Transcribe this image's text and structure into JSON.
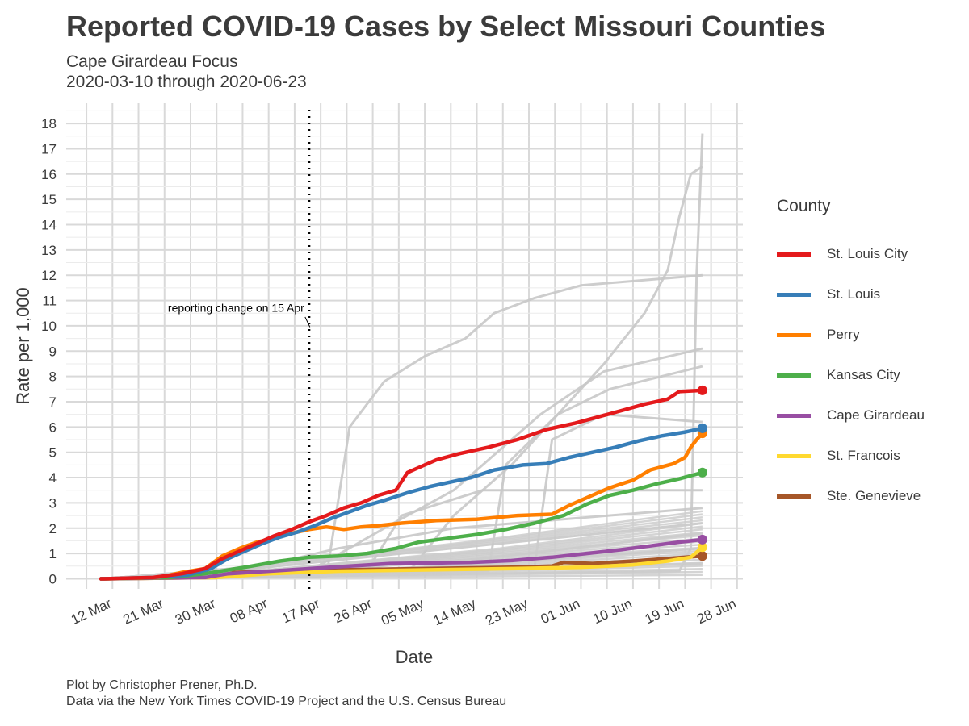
{
  "title": "Reported COVID-19 Cases by Select Missouri Counties",
  "subtitle_line1": "Cape Girardeau Focus",
  "subtitle_line2": "2020-03-10 through 2020-06-23",
  "caption_line1": "Plot by Christopher Prener, Ph.D.",
  "caption_line2": "Data via the New York Times COVID-19 Project and the U.S. Census Bureau",
  "legend": {
    "title": "County",
    "items": [
      {
        "label": "St. Louis City",
        "color": "#e41a1c"
      },
      {
        "label": "St. Louis",
        "color": "#377eb8"
      },
      {
        "label": "Perry",
        "color": "#ff7f00"
      },
      {
        "label": "Kansas City",
        "color": "#4daf4a"
      },
      {
        "label": "Cape Girardeau",
        "color": "#984ea3"
      },
      {
        "label": "St. Francois",
        "color": "#ffd92f"
      },
      {
        "label": "Ste. Genevieve",
        "color": "#a65628"
      }
    ]
  },
  "chart_data": {
    "type": "line",
    "xlabel": "Date",
    "ylabel": "Rate per 1,000",
    "xlim": [
      "2020-03-04",
      "2020-06-29"
    ],
    "ylim": [
      -0.4,
      18.8
    ],
    "x_ticks": [
      {
        "date": "2020-03-12",
        "label": "12 Mar"
      },
      {
        "date": "2020-03-21",
        "label": "21 Mar"
      },
      {
        "date": "2020-03-30",
        "label": "30 Mar"
      },
      {
        "date": "2020-04-08",
        "label": "08 Apr"
      },
      {
        "date": "2020-04-17",
        "label": "17 Apr"
      },
      {
        "date": "2020-04-26",
        "label": "26 Apr"
      },
      {
        "date": "2020-05-05",
        "label": "05 May"
      },
      {
        "date": "2020-05-14",
        "label": "14 May"
      },
      {
        "date": "2020-05-23",
        "label": "23 May"
      },
      {
        "date": "2020-06-01",
        "label": "01 Jun"
      },
      {
        "date": "2020-06-10",
        "label": "10 Jun"
      },
      {
        "date": "2020-06-19",
        "label": "19 Jun"
      },
      {
        "date": "2020-06-28",
        "label": "28 Jun"
      }
    ],
    "y_ticks": [
      0,
      1,
      2,
      3,
      4,
      5,
      6,
      7,
      8,
      9,
      10,
      11,
      12,
      13,
      14,
      15,
      16,
      17,
      18
    ],
    "annotation": {
      "date": "2020-04-15",
      "label": "reporting change on 15 Apr",
      "y": 10
    },
    "series": [
      {
        "name": "St. Louis City",
        "color": "#e41a1c",
        "points": [
          [
            "2020-03-10",
            0
          ],
          [
            "2020-03-19",
            0.05
          ],
          [
            "2020-03-24",
            0.2
          ],
          [
            "2020-03-28",
            0.4
          ],
          [
            "2020-03-31",
            0.8
          ],
          [
            "2020-04-03",
            1.1
          ],
          [
            "2020-04-06",
            1.4
          ],
          [
            "2020-04-09",
            1.7
          ],
          [
            "2020-04-12",
            1.95
          ],
          [
            "2020-04-15",
            2.25
          ],
          [
            "2020-04-18",
            2.5
          ],
          [
            "2020-04-21",
            2.8
          ],
          [
            "2020-04-24",
            3.0
          ],
          [
            "2020-04-27",
            3.3
          ],
          [
            "2020-04-30",
            3.5
          ],
          [
            "2020-05-02",
            4.2
          ],
          [
            "2020-05-04",
            4.4
          ],
          [
            "2020-05-07",
            4.7
          ],
          [
            "2020-05-11",
            4.95
          ],
          [
            "2020-05-16",
            5.2
          ],
          [
            "2020-05-21",
            5.5
          ],
          [
            "2020-05-26",
            5.9
          ],
          [
            "2020-05-31",
            6.15
          ],
          [
            "2020-06-04",
            6.4
          ],
          [
            "2020-06-08",
            6.65
          ],
          [
            "2020-06-12",
            6.9
          ],
          [
            "2020-06-16",
            7.1
          ],
          [
            "2020-06-18",
            7.4
          ],
          [
            "2020-06-22",
            7.45
          ]
        ]
      },
      {
        "name": "St. Louis",
        "color": "#377eb8",
        "points": [
          [
            "2020-03-10",
            0
          ],
          [
            "2020-03-19",
            0.05
          ],
          [
            "2020-03-25",
            0.15
          ],
          [
            "2020-03-29",
            0.4
          ],
          [
            "2020-04-01",
            0.8
          ],
          [
            "2020-04-04",
            1.1
          ],
          [
            "2020-04-07",
            1.4
          ],
          [
            "2020-04-10",
            1.65
          ],
          [
            "2020-04-13",
            1.85
          ],
          [
            "2020-04-16",
            2.1
          ],
          [
            "2020-04-19",
            2.4
          ],
          [
            "2020-04-22",
            2.65
          ],
          [
            "2020-04-25",
            2.9
          ],
          [
            "2020-04-28",
            3.1
          ],
          [
            "2020-05-02",
            3.4
          ],
          [
            "2020-05-06",
            3.65
          ],
          [
            "2020-05-10",
            3.85
          ],
          [
            "2020-05-13",
            4.0
          ],
          [
            "2020-05-17",
            4.3
          ],
          [
            "2020-05-22",
            4.5
          ],
          [
            "2020-05-26",
            4.55
          ],
          [
            "2020-05-30",
            4.8
          ],
          [
            "2020-06-03",
            5.0
          ],
          [
            "2020-06-07",
            5.2
          ],
          [
            "2020-06-11",
            5.45
          ],
          [
            "2020-06-15",
            5.65
          ],
          [
            "2020-06-19",
            5.8
          ],
          [
            "2020-06-22",
            5.95
          ]
        ]
      },
      {
        "name": "Perry",
        "color": "#ff7f00",
        "points": [
          [
            "2020-03-10",
            0
          ],
          [
            "2020-03-20",
            0.05
          ],
          [
            "2020-03-24",
            0.25
          ],
          [
            "2020-03-28",
            0.4
          ],
          [
            "2020-03-31",
            0.9
          ],
          [
            "2020-04-03",
            1.2
          ],
          [
            "2020-04-06",
            1.45
          ],
          [
            "2020-04-09",
            1.6
          ],
          [
            "2020-04-12",
            1.8
          ],
          [
            "2020-04-15",
            1.95
          ],
          [
            "2020-04-18",
            2.05
          ],
          [
            "2020-04-21",
            1.95
          ],
          [
            "2020-04-24",
            2.05
          ],
          [
            "2020-04-27",
            2.1
          ],
          [
            "2020-05-01",
            2.2
          ],
          [
            "2020-05-07",
            2.3
          ],
          [
            "2020-05-14",
            2.35
          ],
          [
            "2020-05-21",
            2.5
          ],
          [
            "2020-05-27",
            2.55
          ],
          [
            "2020-05-30",
            2.9
          ],
          [
            "2020-06-02",
            3.2
          ],
          [
            "2020-06-06",
            3.6
          ],
          [
            "2020-06-10",
            3.9
          ],
          [
            "2020-06-13",
            4.3
          ],
          [
            "2020-06-17",
            4.55
          ],
          [
            "2020-06-19",
            4.8
          ],
          [
            "2020-06-20",
            5.2
          ],
          [
            "2020-06-21",
            5.5
          ],
          [
            "2020-06-22",
            5.75
          ]
        ]
      },
      {
        "name": "Kansas City",
        "color": "#4daf4a",
        "points": [
          [
            "2020-03-10",
            0
          ],
          [
            "2020-03-22",
            0.05
          ],
          [
            "2020-03-28",
            0.2
          ],
          [
            "2020-04-01",
            0.35
          ],
          [
            "2020-04-05",
            0.5
          ],
          [
            "2020-04-10",
            0.7
          ],
          [
            "2020-04-15",
            0.85
          ],
          [
            "2020-04-20",
            0.9
          ],
          [
            "2020-04-25",
            1.0
          ],
          [
            "2020-04-30",
            1.2
          ],
          [
            "2020-05-04",
            1.45
          ],
          [
            "2020-05-09",
            1.6
          ],
          [
            "2020-05-14",
            1.75
          ],
          [
            "2020-05-19",
            1.95
          ],
          [
            "2020-05-24",
            2.2
          ],
          [
            "2020-05-29",
            2.5
          ],
          [
            "2020-06-02",
            2.95
          ],
          [
            "2020-06-06",
            3.3
          ],
          [
            "2020-06-10",
            3.5
          ],
          [
            "2020-06-14",
            3.75
          ],
          [
            "2020-06-18",
            3.95
          ],
          [
            "2020-06-22",
            4.2
          ]
        ]
      },
      {
        "name": "Cape Girardeau",
        "color": "#984ea3",
        "points": [
          [
            "2020-03-10",
            0
          ],
          [
            "2020-03-28",
            0.05
          ],
          [
            "2020-04-01",
            0.2
          ],
          [
            "2020-04-08",
            0.3
          ],
          [
            "2020-04-15",
            0.4
          ],
          [
            "2020-04-22",
            0.5
          ],
          [
            "2020-04-29",
            0.6
          ],
          [
            "2020-05-06",
            0.62
          ],
          [
            "2020-05-13",
            0.65
          ],
          [
            "2020-05-20",
            0.72
          ],
          [
            "2020-05-27",
            0.85
          ],
          [
            "2020-06-02",
            1.0
          ],
          [
            "2020-06-08",
            1.15
          ],
          [
            "2020-06-13",
            1.3
          ],
          [
            "2020-06-18",
            1.45
          ],
          [
            "2020-06-22",
            1.55
          ]
        ]
      },
      {
        "name": "St. Francois",
        "color": "#ffd92f",
        "points": [
          [
            "2020-03-10",
            0
          ],
          [
            "2020-03-30",
            0.05
          ],
          [
            "2020-04-08",
            0.2
          ],
          [
            "2020-04-20",
            0.3
          ],
          [
            "2020-05-05",
            0.35
          ],
          [
            "2020-05-20",
            0.4
          ],
          [
            "2020-06-01",
            0.45
          ],
          [
            "2020-06-10",
            0.55
          ],
          [
            "2020-06-16",
            0.7
          ],
          [
            "2020-06-20",
            0.85
          ],
          [
            "2020-06-22",
            1.25
          ]
        ]
      },
      {
        "name": "Ste. Genevieve",
        "color": "#a65628",
        "points": [
          [
            "2020-03-10",
            0
          ],
          [
            "2020-03-30",
            0.05
          ],
          [
            "2020-04-02",
            0.25
          ],
          [
            "2020-04-10",
            0.3
          ],
          [
            "2020-04-20",
            0.35
          ],
          [
            "2020-05-05",
            0.4
          ],
          [
            "2020-05-20",
            0.45
          ],
          [
            "2020-05-27",
            0.5
          ],
          [
            "2020-05-29",
            0.65
          ],
          [
            "2020-06-03",
            0.6
          ],
          [
            "2020-06-10",
            0.7
          ],
          [
            "2020-06-16",
            0.8
          ],
          [
            "2020-06-22",
            0.9
          ]
        ]
      }
    ],
    "background_series": [
      [
        [
          "2020-03-10",
          0
        ],
        [
          "2020-04-18",
          0.1
        ],
        [
          "2020-04-22",
          6.0
        ],
        [
          "2020-04-28",
          7.8
        ],
        [
          "2020-05-05",
          8.8
        ],
        [
          "2020-05-12",
          9.5
        ],
        [
          "2020-05-17",
          10.5
        ],
        [
          "2020-05-24",
          11.1
        ],
        [
          "2020-06-01",
          11.6
        ],
        [
          "2020-06-22",
          12.0
        ]
      ],
      [
        [
          "2020-03-10",
          0
        ],
        [
          "2020-05-02",
          0.2
        ],
        [
          "2020-05-10",
          2.5
        ],
        [
          "2020-05-20",
          4.5
        ],
        [
          "2020-05-28",
          6.5
        ],
        [
          "2020-06-05",
          8.5
        ],
        [
          "2020-06-12",
          10.5
        ],
        [
          "2020-06-16",
          12.2
        ],
        [
          "2020-06-18",
          14.3
        ],
        [
          "2020-06-20",
          16.0
        ],
        [
          "2020-06-22",
          16.3
        ]
      ],
      [
        [
          "2020-03-10",
          0
        ],
        [
          "2020-06-18",
          0.3
        ],
        [
          "2020-06-20",
          1.2
        ],
        [
          "2020-06-21",
          12.0
        ],
        [
          "2020-06-22",
          17.6
        ]
      ],
      [
        [
          "2020-03-10",
          0
        ],
        [
          "2020-04-15",
          0.3
        ],
        [
          "2020-04-28",
          2.0
        ],
        [
          "2020-05-10",
          3.5
        ],
        [
          "2020-05-25",
          6.5
        ],
        [
          "2020-06-05",
          8.2
        ],
        [
          "2020-06-22",
          9.1
        ]
      ],
      [
        [
          "2020-03-10",
          0
        ],
        [
          "2020-05-16",
          0.3
        ],
        [
          "2020-05-19",
          4.5
        ],
        [
          "2020-05-28",
          6.5
        ],
        [
          "2020-06-06",
          7.5
        ],
        [
          "2020-06-22",
          8.4
        ]
      ],
      [
        [
          "2020-03-10",
          0
        ],
        [
          "2020-05-24",
          0.5
        ],
        [
          "2020-05-27",
          5.5
        ],
        [
          "2020-06-05",
          6.5
        ],
        [
          "2020-06-22",
          6.2
        ]
      ],
      [
        [
          "2020-03-10",
          0
        ],
        [
          "2020-04-25",
          0.3
        ],
        [
          "2020-05-01",
          2.5
        ],
        [
          "2020-05-15",
          3.5
        ],
        [
          "2020-06-22",
          3.5
        ]
      ],
      [
        [
          "2020-03-10",
          0
        ],
        [
          "2020-04-05",
          0.4
        ],
        [
          "2020-04-20",
          1.2
        ],
        [
          "2020-05-10",
          2.0
        ],
        [
          "2020-06-22",
          2.8
        ]
      ],
      [
        [
          "2020-03-10",
          0
        ],
        [
          "2020-04-01",
          0.3
        ],
        [
          "2020-05-01",
          1.0
        ],
        [
          "2020-06-22",
          2.2
        ]
      ],
      [
        [
          "2020-03-10",
          0
        ],
        [
          "2020-04-10",
          0.2
        ],
        [
          "2020-05-15",
          0.8
        ],
        [
          "2020-06-22",
          1.8
        ]
      ],
      [
        [
          "2020-03-10",
          0
        ],
        [
          "2020-04-20",
          0.2
        ],
        [
          "2020-06-22",
          1.2
        ]
      ],
      [
        [
          "2020-03-10",
          0
        ],
        [
          "2020-04-05",
          0.1
        ],
        [
          "2020-06-22",
          0.6
        ]
      ]
    ]
  }
}
